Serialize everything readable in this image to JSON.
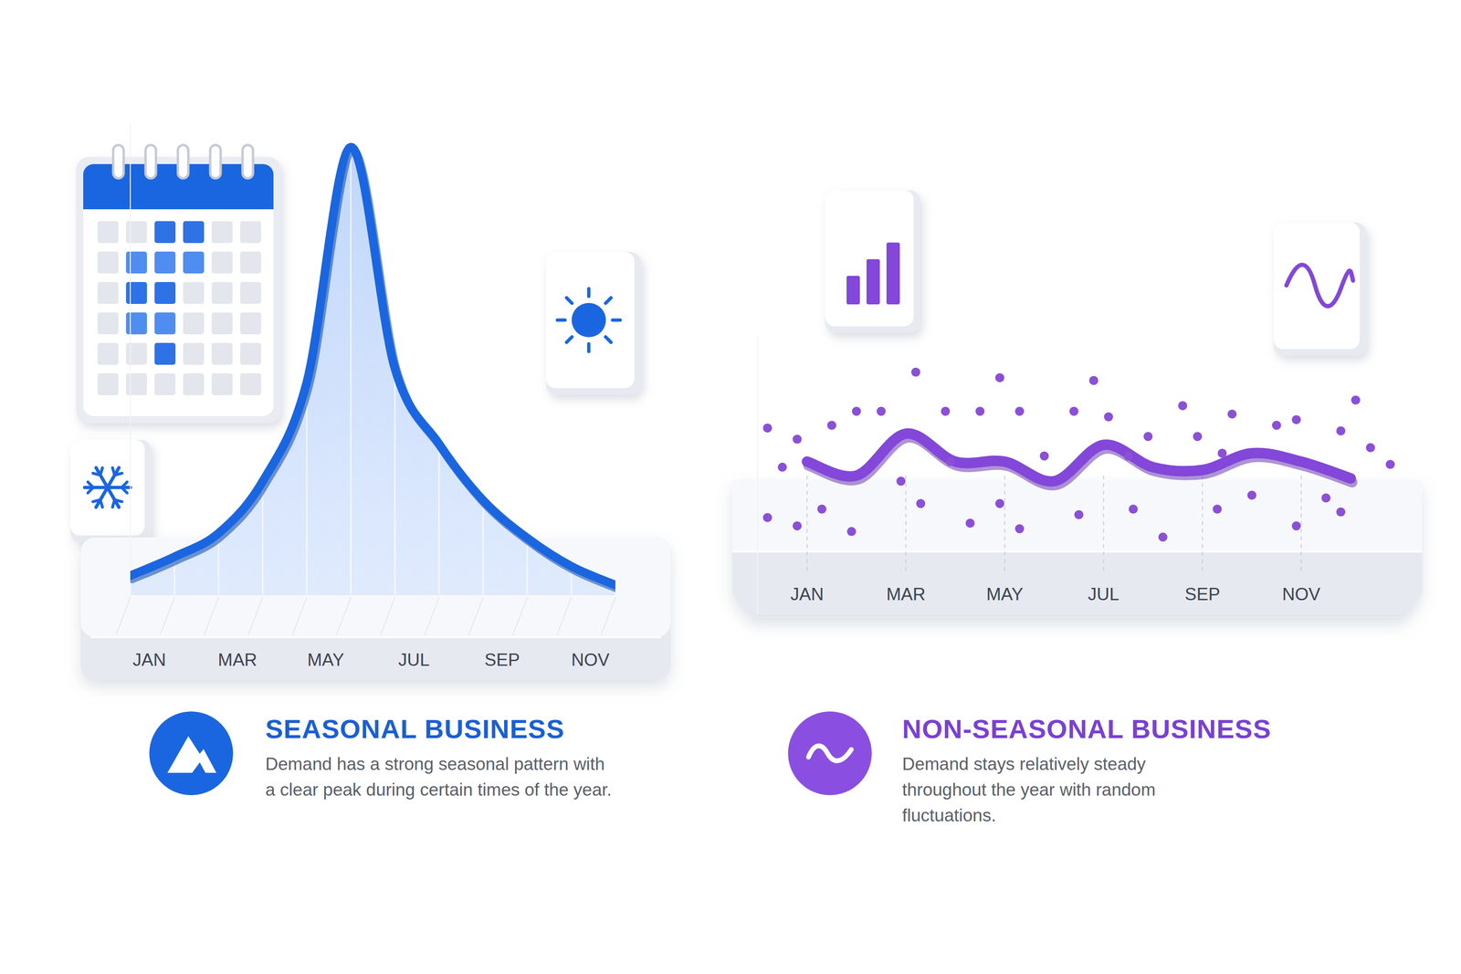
{
  "chart_data": [
    {
      "type": "area",
      "title": "SEASONAL BUSINESS",
      "subtitle": "Demand has a strong seasonal pattern with a clear peak during certain times of the year.",
      "categories": [
        "JAN",
        null,
        "MAR",
        null,
        "MAY",
        null,
        "JUL",
        null,
        "SEP",
        null,
        "NOV",
        null
      ],
      "values": [
        4,
        8,
        13,
        24,
        45,
        95,
        48,
        32,
        20,
        12,
        6,
        2
      ],
      "color": "#1a66e0",
      "xlim": [
        0,
        11
      ],
      "ylim": [
        0,
        100
      ],
      "tick_labels": "x",
      "grid": false
    },
    {
      "type": "line",
      "title": "NON-SEASONAL BUSINESS",
      "subtitle": "Demand stays relatively steady throughout the year with random fluctuations.",
      "categories": [
        "JAN",
        null,
        "MAR",
        null,
        "MAY",
        null,
        "JUL",
        null,
        "SEP",
        null,
        "NOV",
        null
      ],
      "xlim": [
        -1,
        12
      ],
      "ylim": [
        0,
        100
      ],
      "tick_labels": "x",
      "grid": false,
      "series": [
        {
          "type": "line",
          "color": "#8347d9",
          "values": [
            55,
            50,
            65,
            55,
            55,
            48,
            61,
            53,
            52,
            58,
            55,
            49
          ]
        },
        {
          "type": "scatter",
          "color": "#8b4fd8",
          "marker": "circle",
          "x": [
            -0.8,
            -0.5,
            -0.8,
            -0.2,
            -0.2,
            0.3,
            0.5,
            1.0,
            0.9,
            1.5,
            1.9,
            2.2,
            2.3,
            2.8,
            2.9,
            3.3,
            3.5,
            3.9,
            3.9,
            4.3,
            4.3,
            4.8,
            5.4,
            5.5,
            5.8,
            6.1,
            6.5,
            6.6,
            6.9,
            7.2,
            7.6,
            7.9,
            8.3,
            8.4,
            8.6,
            9.0,
            9.5,
            9.9,
            9.9,
            10.5,
            10.8,
            11.1,
            10.8,
            11.8,
            11.4
          ],
          "values": [
            67,
            53,
            35,
            63,
            32,
            38,
            68,
            73,
            30,
            73,
            48,
            87,
            40,
            73,
            55,
            33,
            73,
            85,
            40,
            73,
            31,
            57,
            73,
            36,
            84,
            71,
            57,
            38,
            64,
            28,
            75,
            64,
            38,
            58,
            72,
            43,
            68,
            70,
            32,
            42,
            37,
            77,
            66,
            54,
            60
          ]
        }
      ]
    }
  ]
}
